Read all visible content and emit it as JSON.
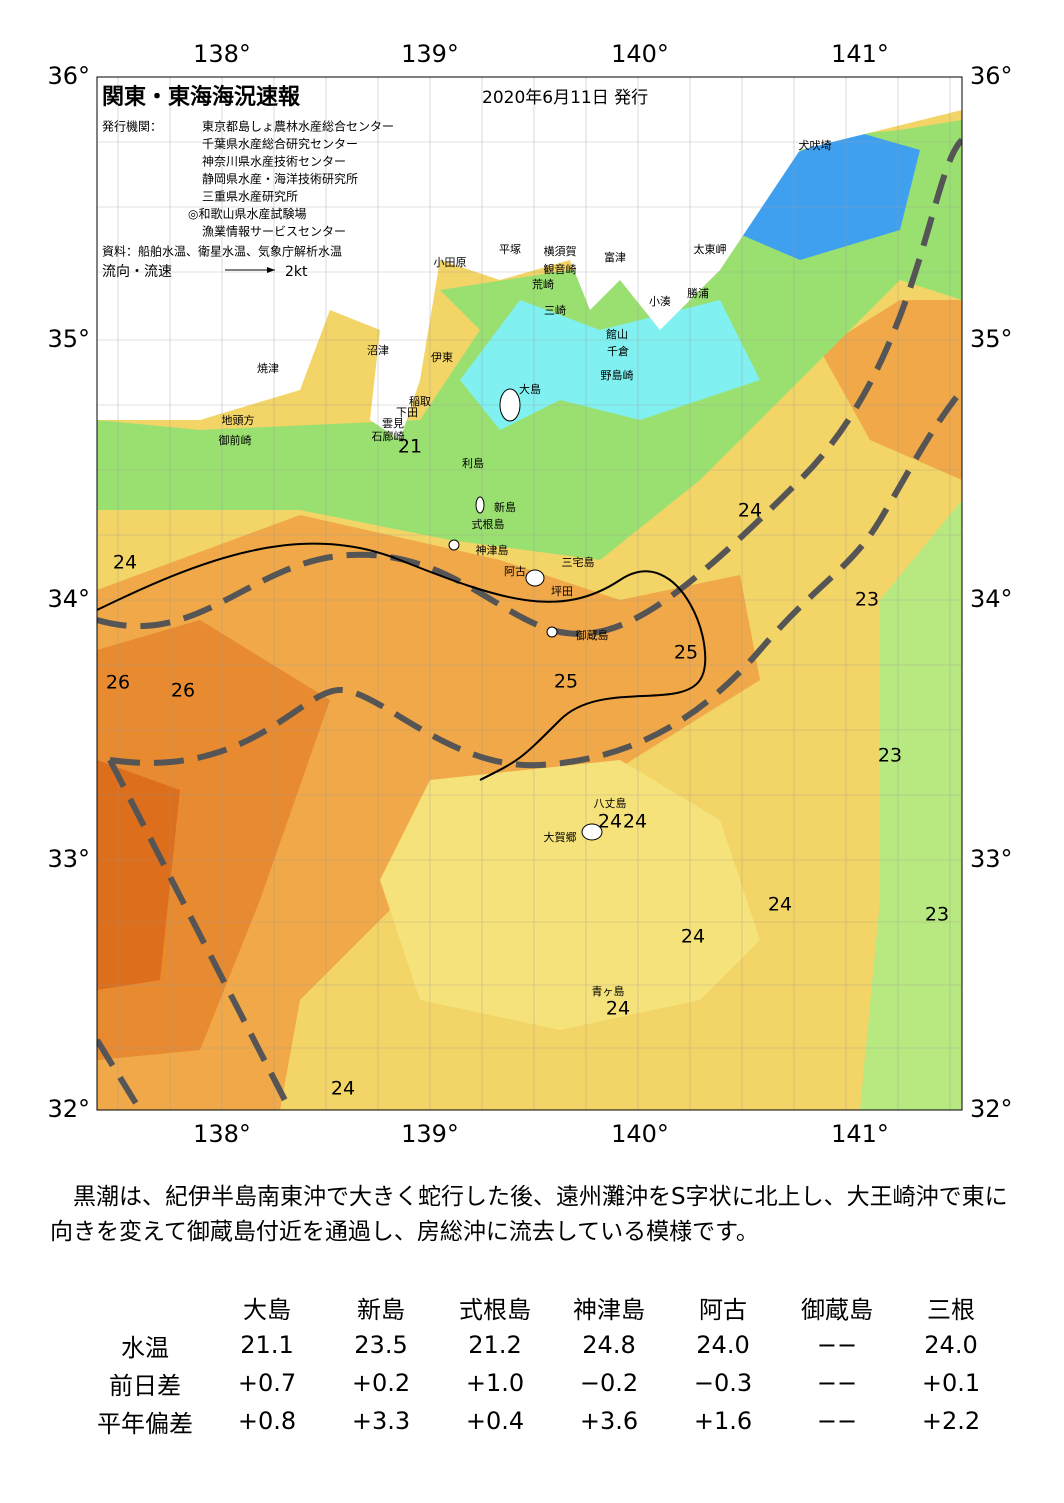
{
  "header": {
    "title": "関東・東海海況速報",
    "date": "2020年6月11日 発行"
  },
  "issuers": {
    "label": "発行機関：",
    "list": [
      "東京都島しょ農林水産総合センター",
      "千葉県水産総合研究センター",
      "神奈川県水産技術センター",
      "静岡県水産・海洋技術研究所",
      "三重県水産研究所",
      "◎和歌山県水産試験場",
      "漁業情報サービスセンター"
    ]
  },
  "source": "資料：船舶水温、衛星水温、気象庁解析水温",
  "flow": {
    "label": "流向・流速",
    "scale": "2kt"
  },
  "axes": {
    "lon_labels": [
      "138°",
      "139°",
      "140°",
      "141°"
    ],
    "lat_labels": [
      "36°",
      "35°",
      "34°",
      "33°",
      "32°"
    ]
  },
  "places": [
    "犬吠埼",
    "太東岬",
    "勝浦",
    "小湊",
    "富津",
    "横須賀",
    "平塚",
    "小田原",
    "観音崎",
    "荒崎",
    "三崎",
    "館山",
    "千倉",
    "野島崎",
    "大島",
    "沼津",
    "伊東",
    "焼津",
    "稲取",
    "下田",
    "雲見",
    "石廊崎",
    "地頭方",
    "御前崎",
    "利島",
    "新島",
    "式根島",
    "神津島",
    "阿古",
    "三宅島",
    "坪田",
    "御蔵島",
    "八丈島",
    "大賀郷",
    "青ヶ島"
  ],
  "temperatures": [
    21,
    24,
    24,
    26,
    26,
    25,
    25,
    23,
    23,
    24,
    24,
    24,
    23,
    24,
    24,
    24
  ],
  "description": "黒潮は、紀伊半島南東沖で大きく蛇行した後、遠州灘沖をS字状に北上し、大王崎沖で東に向きを変えて御蔵島付近を通過し、房総沖に流去している模様です。",
  "table": {
    "columns": [
      "大島",
      "新島",
      "式根島",
      "神津島",
      "阿古",
      "御蔵島",
      "三根"
    ],
    "rows": [
      {
        "label": "水温",
        "values": [
          "21.1",
          "23.5",
          "21.2",
          "24.8",
          "24.0",
          "−−",
          "24.0"
        ]
      },
      {
        "label": "前日差",
        "values": [
          "+0.7",
          "+0.2",
          "+1.0",
          "−0.2",
          "−0.3",
          "−−",
          "+0.1"
        ]
      },
      {
        "label": "平年偏差",
        "values": [
          "+0.8",
          "+3.3",
          "+0.4",
          "+3.6",
          "+1.6",
          "−−",
          "+2.2"
        ]
      }
    ]
  }
}
